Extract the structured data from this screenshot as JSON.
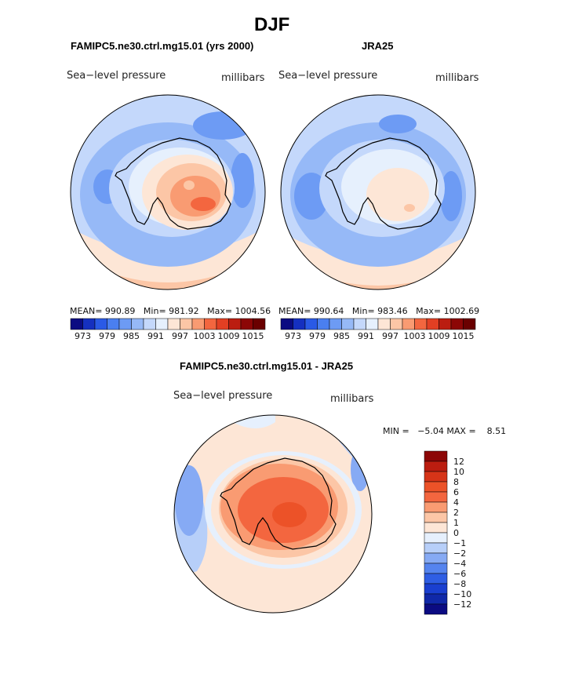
{
  "figure": {
    "title": "DJF"
  },
  "chart_data": [
    {
      "type": "heatmap",
      "projection": "south-polar-stereographic",
      "title": "FAMIPC5.ne30.ctrl.mg15.01 (yrs 2000)",
      "variable_label": "Sea−level pressure",
      "units_label": "millibars",
      "stats": {
        "mean_label": "MEAN=",
        "mean": "990.89",
        "min_label": "Min=",
        "min": "981.92",
        "max_label": "Max=",
        "max": "1004.56"
      },
      "colorbar": {
        "orientation": "horizontal",
        "levels": [
          973,
          976,
          979,
          982,
          985,
          988,
          991,
          994,
          997,
          1000,
          1003,
          1006,
          1009,
          1012,
          1015
        ],
        "tick_labels": [
          "973",
          "979",
          "985",
          "991",
          "997",
          "1003",
          "1009",
          "1015"
        ],
        "colors": [
          "#0b0b82",
          "#1530c0",
          "#2a5ae6",
          "#4a7ff0",
          "#6d9bf4",
          "#96b9f7",
          "#c4d8fb",
          "#e6f0fd",
          "#fde6d6",
          "#fcc6a6",
          "#f99b72",
          "#f3663f",
          "#e23f23",
          "#bb1d10",
          "#8c0606",
          "#6a0000"
        ]
      }
    },
    {
      "type": "heatmap",
      "projection": "south-polar-stereographic",
      "title": "JRA25",
      "variable_label": "Sea−level pressure",
      "units_label": "millibars",
      "stats": {
        "mean_label": "MEAN=",
        "mean": "990.64",
        "min_label": "Min=",
        "min": "983.46",
        "max_label": "Max=",
        "max": "1002.69"
      },
      "colorbar": {
        "orientation": "horizontal",
        "levels": [
          973,
          976,
          979,
          982,
          985,
          988,
          991,
          994,
          997,
          1000,
          1003,
          1006,
          1009,
          1012,
          1015
        ],
        "tick_labels": [
          "973",
          "979",
          "985",
          "991",
          "997",
          "1003",
          "1009",
          "1015"
        ],
        "colors": [
          "#0b0b82",
          "#1530c0",
          "#2a5ae6",
          "#4a7ff0",
          "#6d9bf4",
          "#96b9f7",
          "#c4d8fb",
          "#e6f0fd",
          "#fde6d6",
          "#fcc6a6",
          "#f99b72",
          "#f3663f",
          "#e23f23",
          "#bb1d10",
          "#8c0606",
          "#6a0000"
        ]
      }
    },
    {
      "type": "heatmap",
      "projection": "south-polar-stereographic",
      "title": "FAMIPC5.ne30.ctrl.mg15.01 - JRA25",
      "variable_label": "Sea−level pressure",
      "units_label": "millibars",
      "stats": {
        "min_label": "MIN =",
        "min": "−5.04",
        "max_label": "MAX =",
        "max": "8.51"
      },
      "colorbar": {
        "orientation": "vertical",
        "tick_labels": [
          "12",
          "10",
          "8",
          "6",
          "4",
          "2",
          "1",
          "0",
          "−1",
          "−2",
          "−4",
          "−6",
          "−8",
          "−10",
          "−12"
        ],
        "colors": [
          "#8c0606",
          "#bb1d10",
          "#d63418",
          "#ec5228",
          "#f3663f",
          "#f99b72",
          "#fcc6a6",
          "#fde6d6",
          "#e6f0fd",
          "#b7cff9",
          "#86aaf4",
          "#5584ef",
          "#2f5ee4",
          "#1a3fd0",
          "#1028a8",
          "#0b0b82"
        ]
      }
    }
  ]
}
